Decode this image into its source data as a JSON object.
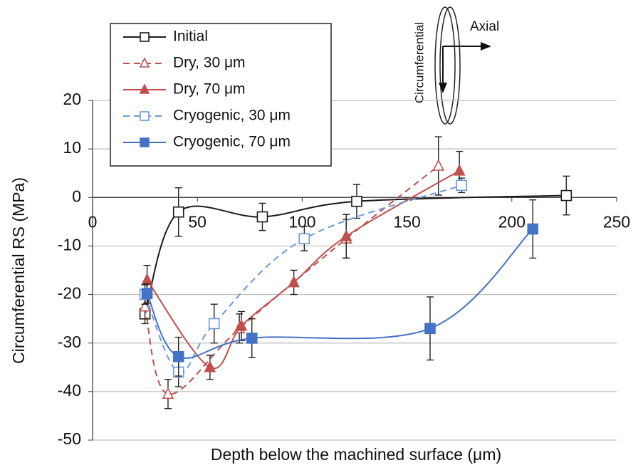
{
  "chart_data": {
    "type": "line",
    "x_label": "Depth below the machined surface (μm)",
    "y_label": "Circumferential RS (MPa)",
    "annotations": [
      "Axial",
      "Circumferential"
    ],
    "xlim": [
      0,
      250
    ],
    "xticks": [
      0,
      50,
      100,
      150,
      200,
      250
    ],
    "ylim": [
      -50,
      20
    ],
    "yticks": [
      -50,
      -40,
      -30,
      -20,
      -10,
      0,
      10,
      20
    ],
    "grid": true,
    "legend": "upper left",
    "series": [
      {
        "name": "Initial",
        "color": "#1a1a1a",
        "marker": "square-open",
        "dashed": false,
        "x": [
          25,
          41,
          81,
          126,
          226
        ],
        "values": [
          -24,
          -3,
          -4,
          -0.8,
          0.4
        ],
        "errors": [
          2,
          5,
          2.8,
          3.5,
          4
        ]
      },
      {
        "name": "Dry, 30 μm",
        "color": "#c0504d",
        "marker": "triangle-open",
        "dashed": true,
        "x": [
          25,
          36,
          70,
          121,
          165
        ],
        "values": [
          -22.5,
          -40.5,
          -27,
          -8.5,
          6.5
        ],
        "errors": [
          2.5,
          3,
          3,
          4,
          6
        ]
      },
      {
        "name": "Dry, 70 μm",
        "color": "#c0504d",
        "marker": "triangle",
        "dashed": false,
        "x": [
          26,
          56,
          71,
          96,
          121,
          175
        ],
        "values": [
          -17,
          -35,
          -26.5,
          -17.5,
          -8,
          5.5
        ],
        "errors": [
          3,
          2.5,
          3,
          2.5,
          4.5,
          4
        ]
      },
      {
        "name": "Cryogenic, 30 μm",
        "color": "#6a9ad8",
        "marker": "square-open",
        "dashed": true,
        "x": [
          25,
          41,
          58,
          101,
          176
        ],
        "values": [
          -20,
          -36,
          -26,
          -8.5,
          2.5
        ],
        "errors": [
          2,
          3,
          4,
          2.5,
          1.5
        ]
      },
      {
        "name": "Cryogenic, 70 μm",
        "color": "#4472c4",
        "marker": "square",
        "dashed": false,
        "x": [
          26,
          41,
          76,
          161,
          210
        ],
        "values": [
          -19.8,
          -32.8,
          -29,
          -27,
          -6.5
        ],
        "errors": [
          2,
          4,
          4,
          6.5,
          6
        ]
      }
    ]
  }
}
